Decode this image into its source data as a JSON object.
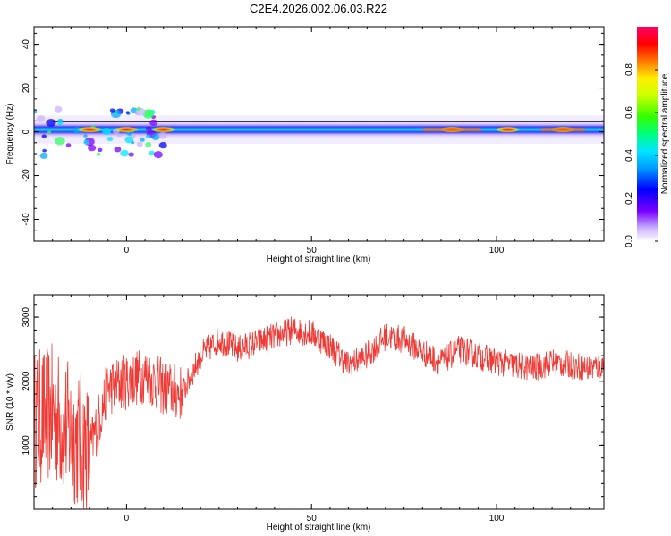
{
  "figure_title": "C2E4.2026.002.06.03.R22",
  "colors": {
    "snr_line": "#f03a35",
    "axis": "#000000"
  },
  "chart_data": [
    {
      "type": "heatmap",
      "xlabel": "Height of straight line (km)",
      "ylabel": "Frequency (Hz)",
      "xlim": [
        -25,
        129
      ],
      "ylim": [
        -50,
        48
      ],
      "xticks": [
        0,
        50,
        100
      ],
      "yticks": [
        -40,
        -20,
        0,
        20,
        40
      ],
      "colorbar": {
        "label": "Normalized spectral amplitude",
        "range": [
          0,
          1
        ],
        "ticks": [
          "0.0",
          "0.2",
          "0.4",
          "0.6",
          "0.8"
        ],
        "colormap": "rainbow (white-violet-blue-cyan-green-yellow-red-pink)"
      },
      "band": {
        "center_hz": 1,
        "half_width_hz": 4,
        "description": "narrow horizontal band of energy near 0 Hz across full height range",
        "peaks": [
          {
            "x_km": -10,
            "amplitude": 0.9
          },
          {
            "x_km": 0,
            "amplitude": 0.85
          },
          {
            "x_km": 10,
            "amplitude": 0.85
          },
          {
            "x_km": 88,
            "amplitude": 0.9
          },
          {
            "x_km": 103,
            "amplitude": 0.85
          },
          {
            "x_km": 118,
            "amplitude": 0.88
          }
        ]
      }
    },
    {
      "type": "line",
      "xlabel": "Height of straight line (km)",
      "ylabel": "SNR (10 * v/v)",
      "xlim": [
        -25,
        129
      ],
      "ylim": [
        0,
        3350
      ],
      "xticks": [
        0,
        50,
        100
      ],
      "yticks": [
        1000,
        2000,
        3000
      ],
      "series": [
        {
          "x": [
            -25,
            -20,
            -15,
            -10,
            -5,
            0,
            5,
            10,
            15,
            20,
            25,
            30,
            35,
            40,
            45,
            50,
            55,
            60,
            65,
            70,
            75,
            80,
            85,
            90,
            95,
            100,
            105,
            110,
            115,
            120,
            125,
            129
          ],
          "values": [
            1400,
            1500,
            1200,
            900,
            1900,
            2000,
            2100,
            1900,
            1800,
            2400,
            2650,
            2500,
            2600,
            2700,
            2800,
            2750,
            2550,
            2250,
            2400,
            2700,
            2650,
            2450,
            2300,
            2500,
            2400,
            2300,
            2250,
            2200,
            2300,
            2250,
            2200,
            2250
          ]
        }
      ]
    }
  ]
}
